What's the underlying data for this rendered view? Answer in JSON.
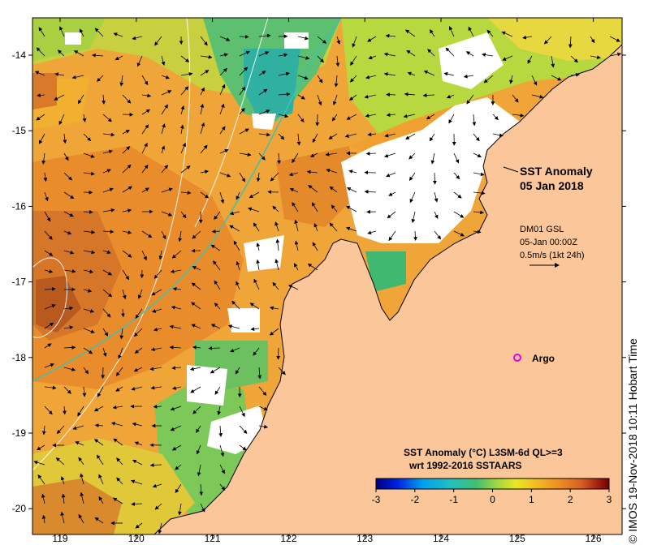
{
  "title": {
    "line1": "SST Anomaly",
    "line2": "05 Jan 2018"
  },
  "current_legend": {
    "model": "DM01 GSL",
    "time": "05-Jan 00:00Z",
    "scale": "0.5m/s (1kt 24h)"
  },
  "argo": {
    "label": "Argo",
    "color": "#e000e0"
  },
  "colorbar": {
    "title": "SST Anomaly (°C) L3SM-6d QL>=3",
    "subtitle": "wrt 1992-2016 SSTAARS",
    "ticks": [
      "-3",
      "-2",
      "-1",
      "0",
      "1",
      "2",
      "3"
    ],
    "colors": [
      "#000080",
      "#0020e0",
      "#00a0f0",
      "#20c0c0",
      "#40c070",
      "#a0d840",
      "#e8e820",
      "#f0c020",
      "#f09020",
      "#d86020",
      "#a82010",
      "#700000"
    ]
  },
  "axes": {
    "x_ticks": [
      "119",
      "120",
      "121",
      "122",
      "123",
      "124",
      "125",
      "126"
    ],
    "y_ticks": [
      "-14",
      "-15",
      "-16",
      "-17",
      "-18",
      "-19",
      "-20"
    ]
  },
  "credit": "© IMOS 19-Nov-2018 10:11 Hobart Time",
  "colors": {
    "land": "#fbc79a",
    "ocean_base": "#efa538",
    "missing": "#ffffff"
  }
}
